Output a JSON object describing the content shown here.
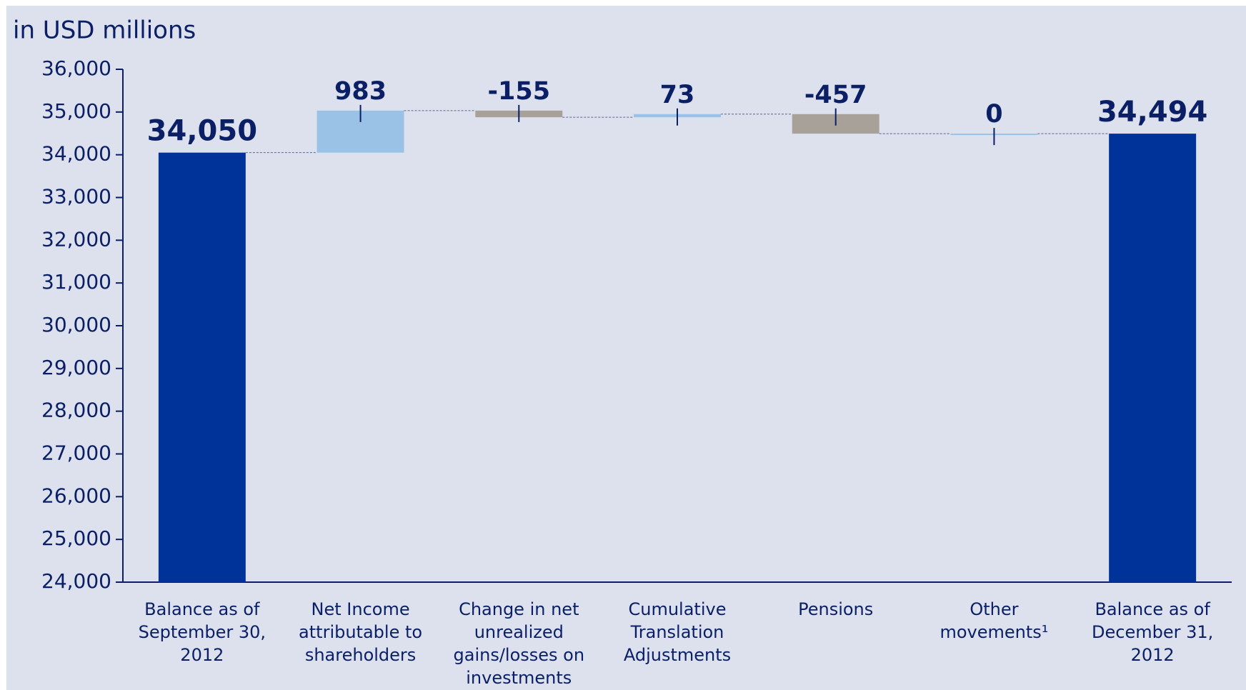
{
  "chart_data": {
    "type": "waterfall",
    "y_label": "in USD millions",
    "categories": [
      "Balance as of September 30, 2012",
      "Net Income attributable to shareholders",
      "Change in net unrealized gains/losses on investments",
      "Cumulative Translation Adjustments",
      "Pensions",
      "Other movements¹",
      "Balance as of December 31, 2012"
    ],
    "measure": [
      "total",
      "relative",
      "relative",
      "relative",
      "relative",
      "relative",
      "total"
    ],
    "values": [
      34050,
      983,
      -155,
      73,
      -457,
      0,
      34494
    ],
    "value_labels": [
      "34,050",
      "983",
      "-155",
      "73",
      "-457",
      "0",
      "34,494"
    ],
    "colors": {
      "total": "#003399",
      "increase": "#99c2e6",
      "decrease": "#a8a19a"
    },
    "ylim": [
      24000,
      36000
    ],
    "yticks": [
      {
        "value": 24000,
        "label": "24,000"
      },
      {
        "value": 25000,
        "label": "25,000"
      },
      {
        "value": 26000,
        "label": "26,000"
      },
      {
        "value": 27000,
        "label": "27,000"
      },
      {
        "value": 28000,
        "label": "28,000"
      },
      {
        "value": 29000,
        "label": "29,000"
      },
      {
        "value": 30000,
        "label": "30,000"
      },
      {
        "value": 31000,
        "label": "31,000"
      },
      {
        "value": 32000,
        "label": "32,000"
      },
      {
        "value": 33000,
        "label": "33,000"
      },
      {
        "value": 34000,
        "label": "34,000"
      },
      {
        "value": 35000,
        "label": "35,000"
      },
      {
        "value": 36000,
        "label": "36,000"
      }
    ],
    "grid": false
  }
}
